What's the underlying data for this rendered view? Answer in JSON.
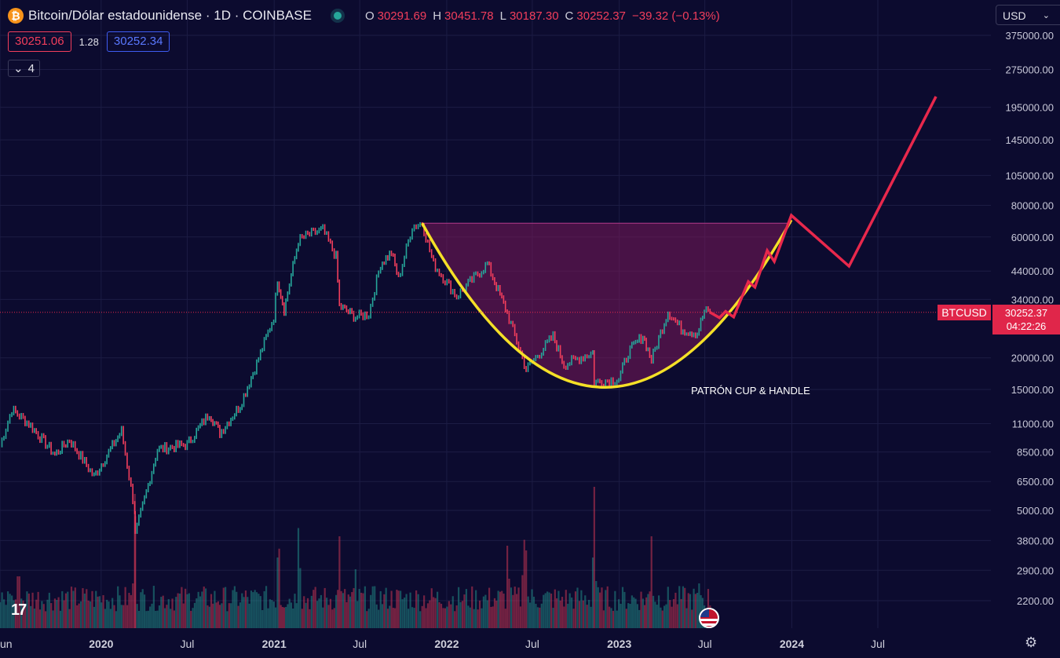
{
  "header": {
    "btc_glyph": "₿",
    "symbol_title": "Bitcoin/Dólar estadounidense · 1D · COINBASE",
    "ohlc": [
      {
        "k": "O",
        "v": "30291.69"
      },
      {
        "k": "H",
        "v": "30451.78"
      },
      {
        "k": "L",
        "v": "30187.30"
      },
      {
        "k": "C",
        "v": "30252.37"
      }
    ],
    "change": "−39.32 (−0.13%)",
    "bid": "30251.06",
    "spread": "1.28",
    "ask": "30252.34",
    "indicators_chevron": "⌄",
    "indicators_count": "4",
    "currency": "USD",
    "currency_chevron": "⌄"
  },
  "footer": {
    "tv_logo": "17",
    "settings_glyph": "⚙"
  },
  "colors": {
    "background": "#0c0b2f",
    "up": "#26a69a",
    "down": "#f23e5c",
    "cup": "#f5e027",
    "cup_fill": "#7a1a5a",
    "projection": "#e8284c",
    "price_line": "#e8284c"
  },
  "chart_data": {
    "type": "line",
    "x_axis": {
      "labels": [
        "un",
        "2020",
        "Jul",
        "2021",
        "Jul",
        "2022",
        "Jul",
        "2023",
        "Jul",
        "2024",
        "Jul"
      ],
      "bold": [
        false,
        true,
        false,
        true,
        false,
        true,
        false,
        true,
        false,
        true,
        false
      ],
      "dates": [
        "2019-06-01",
        "2020-01-01",
        "2020-07-01",
        "2021-01-01",
        "2021-07-01",
        "2022-01-01",
        "2022-07-01",
        "2023-01-01",
        "2023-07-01",
        "2024-01-01",
        "2024-07-01"
      ]
    },
    "y_axis": {
      "scale": "log",
      "ticks": [
        "375000.00",
        "275000.00",
        "195000.00",
        "145000.00",
        "105000.00",
        "80000.00",
        "60000.00",
        "44000.00",
        "34000.00",
        "20000.00",
        "15000.00",
        "11000.00",
        "8500.00",
        "6500.00",
        "5000.00",
        "3800.00",
        "2900.00",
        "2200.00"
      ],
      "tick_values": [
        375000,
        275000,
        195000,
        145000,
        105000,
        80000,
        60000,
        44000,
        34000,
        20000,
        15000,
        11000,
        8500,
        6500,
        5000,
        3800,
        2900,
        2200
      ]
    },
    "series": [
      {
        "kind": "price",
        "points": [
          [
            "2019-06-01",
            9000
          ],
          [
            "2019-06-26",
            12500
          ],
          [
            "2019-08-01",
            11000
          ],
          [
            "2019-09-25",
            8300
          ],
          [
            "2019-10-26",
            9500
          ],
          [
            "2019-12-17",
            6800
          ],
          [
            "2020-02-13",
            10300
          ],
          [
            "2020-03-12",
            5000
          ],
          [
            "2020-03-13",
            4000
          ],
          [
            "2020-04-29",
            8700
          ],
          [
            "2020-07-01",
            9100
          ],
          [
            "2020-08-17",
            12100
          ],
          [
            "2020-09-08",
            10100
          ],
          [
            "2020-10-21",
            13000
          ],
          [
            "2020-11-25",
            19000
          ],
          [
            "2020-12-31",
            29000
          ],
          [
            "2021-01-08",
            41000
          ],
          [
            "2021-01-22",
            31000
          ],
          [
            "2021-02-21",
            58000
          ],
          [
            "2021-03-13",
            61000
          ],
          [
            "2021-04-14",
            64000
          ],
          [
            "2021-05-12",
            50000
          ],
          [
            "2021-05-19",
            32000
          ],
          [
            "2021-06-22",
            29000
          ],
          [
            "2021-07-20",
            29800
          ],
          [
            "2021-08-14",
            47000
          ],
          [
            "2021-09-06",
            52000
          ],
          [
            "2021-09-21",
            41000
          ],
          [
            "2021-10-20",
            66000
          ],
          [
            "2021-11-10",
            68000
          ],
          [
            "2021-12-04",
            47000
          ],
          [
            "2022-01-22",
            35000
          ],
          [
            "2022-03-28",
            47000
          ],
          [
            "2022-05-09",
            30000
          ],
          [
            "2022-06-18",
            18000
          ],
          [
            "2022-08-14",
            24300
          ],
          [
            "2022-09-06",
            18800
          ],
          [
            "2022-11-06",
            21000
          ],
          [
            "2022-11-09",
            16000
          ],
          [
            "2022-12-31",
            16500
          ],
          [
            "2023-01-20",
            21000
          ],
          [
            "2023-02-20",
            24500
          ],
          [
            "2023-03-10",
            19600
          ],
          [
            "2023-04-14",
            30500
          ],
          [
            "2023-05-12",
            26000
          ],
          [
            "2023-06-15",
            25000
          ],
          [
            "2023-06-30",
            30500
          ],
          [
            "2023-07-12",
            30252
          ]
        ]
      },
      {
        "kind": "cup",
        "points": [
          [
            "2021-11-10",
            68000
          ],
          [
            "2022-12-01",
            15300
          ],
          [
            "2023-12-31",
            70000
          ]
        ]
      },
      {
        "kind": "projection",
        "points": [
          [
            "2023-07-12",
            30252
          ],
          [
            "2023-08-01",
            28800
          ],
          [
            "2023-08-14",
            30500
          ],
          [
            "2023-08-31",
            29000
          ],
          [
            "2023-10-01",
            40000
          ],
          [
            "2023-10-15",
            38000
          ],
          [
            "2023-11-10",
            53000
          ],
          [
            "2023-11-25",
            48000
          ],
          [
            "2023-12-31",
            73000
          ],
          [
            "2024-05-01",
            46000
          ],
          [
            "2024-11-01",
            215000
          ]
        ]
      }
    ],
    "volume": {
      "peaks": [
        [
          "2019-06-20",
          0.35
        ],
        [
          "2019-07-10",
          0.55
        ],
        [
          "2020-03-12",
          0.95
        ],
        [
          "2020-03-13",
          0.45
        ],
        [
          "2021-01-10",
          0.75
        ],
        [
          "2021-02-22",
          0.85
        ],
        [
          "2021-05-19",
          0.65
        ],
        [
          "2021-06-21",
          0.5
        ],
        [
          "2022-05-10",
          0.7
        ],
        [
          "2022-06-13",
          0.75
        ],
        [
          "2022-06-18",
          0.55
        ],
        [
          "2022-11-09",
          1.0
        ],
        [
          "2023-03-10",
          0.65
        ],
        [
          "2023-06-20",
          0.4
        ]
      ]
    },
    "fill": {
      "from": "2021-11-10",
      "to": "2023-12-31",
      "top": 68000
    },
    "annotation": "PATRÓN CUP & HANDLE",
    "last_price": {
      "value": 30252.37,
      "label": "30252.37",
      "symbol": "BTCUSD",
      "timer": "04:22:26"
    }
  }
}
